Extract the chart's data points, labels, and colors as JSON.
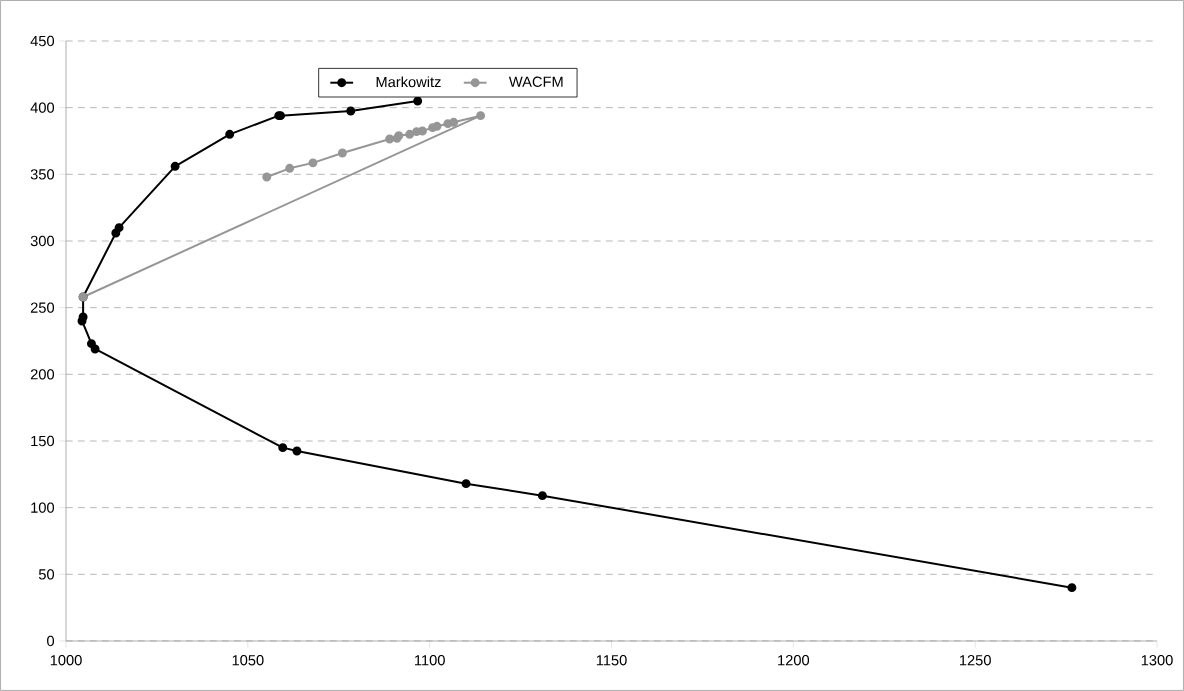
{
  "chart_data": {
    "type": "line",
    "series": [
      {
        "name": "Markowitz",
        "color": "#000000",
        "x": [
          1096.7,
          1078.3,
          1059,
          1058.5,
          1045,
          1030,
          1014.6,
          1013.7,
          1004.7,
          1004.7,
          1004.4,
          1007,
          1008,
          1059.6,
          1063.5,
          1110,
          1131,
          1276.6
        ],
        "values": [
          405,
          397.5,
          394,
          394,
          380,
          356,
          310,
          306,
          258,
          243,
          240,
          223,
          219,
          145,
          142.5,
          118,
          109,
          40
        ]
      },
      {
        "name": "WACFM",
        "color": "#969696",
        "x": [
          1004.7,
          1114,
          1106.6,
          1105,
          1102,
          1100.8,
          1098,
          1096.4,
          1094.5,
          1091.5,
          1091,
          1089,
          1076,
          1067.9,
          1061.5,
          1055.2
        ],
        "values": [
          258,
          394,
          389,
          388,
          386,
          385,
          382.5,
          382,
          380,
          379,
          377,
          376.5,
          366,
          358.6,
          354.5,
          348
        ]
      }
    ],
    "xlim": [
      1000,
      1300
    ],
    "xticks": [
      1000,
      1050,
      1100,
      1150,
      1200,
      1250,
      1300
    ],
    "ylim": [
      0,
      450
    ],
    "yticks": [
      0,
      50,
      100,
      150,
      200,
      250,
      300,
      350,
      400,
      450
    ],
    "grid": "y",
    "legend": "top",
    "marker": "circle",
    "line_style": "solid"
  }
}
